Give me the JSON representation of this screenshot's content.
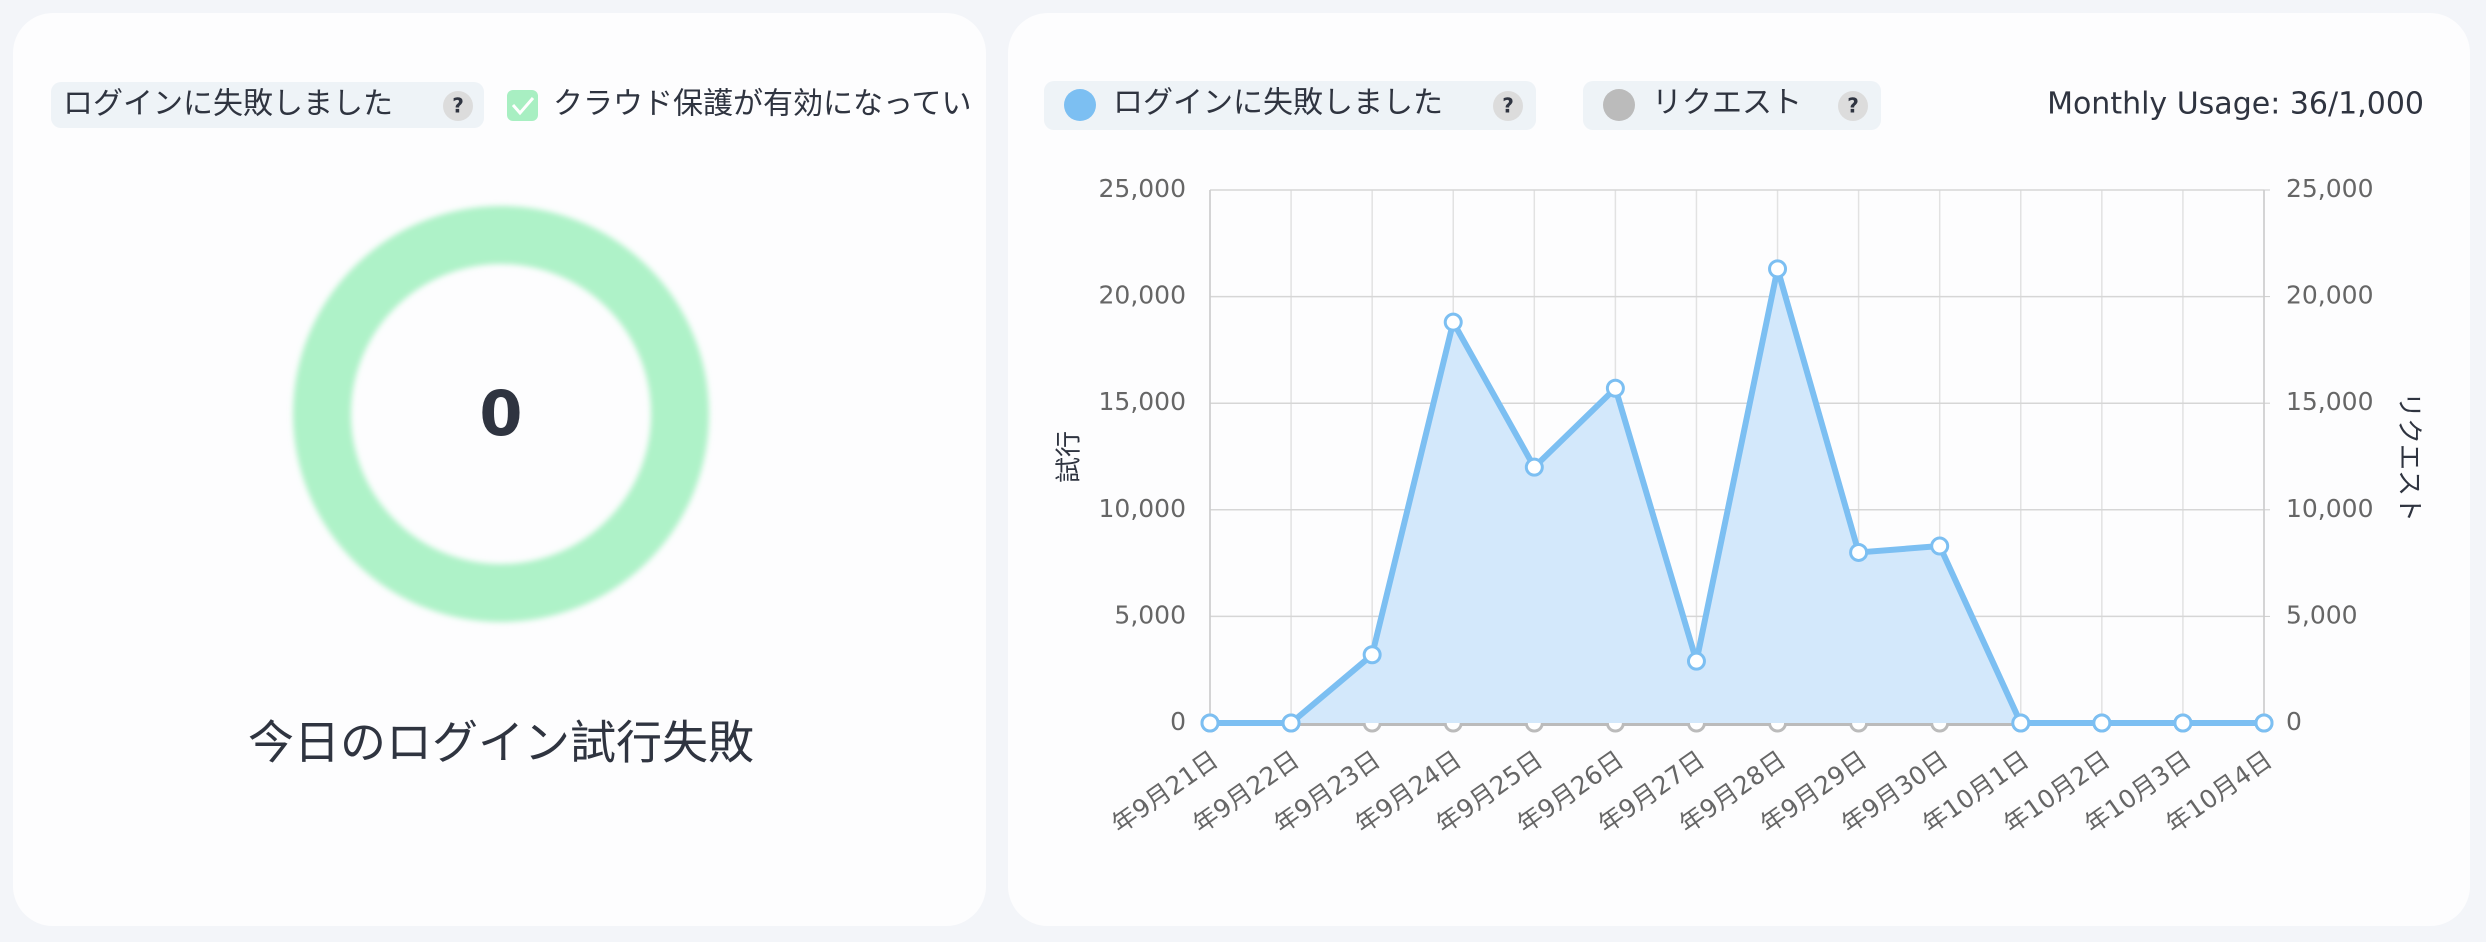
{
  "left_card": {
    "chip_label": "ログインに失敗しました",
    "help_icon": "?",
    "checkbox_label": "クラウド保護が有効になってい",
    "count": "0",
    "caption": "今日のログイン試行失敗"
  },
  "right_card": {
    "usage": "Monthly Usage: 36/1,000"
  },
  "chart_data": {
    "type": "line",
    "categories": [
      "年9月21日",
      "年9月22日",
      "年9月23日",
      "年9月24日",
      "年9月25日",
      "年9月26日",
      "年9月27日",
      "年9月28日",
      "年9月29日",
      "年9月30日",
      "年10月1日",
      "年10月2日",
      "年10月3日",
      "年10月4日"
    ],
    "series": [
      {
        "name": "ログインに失敗しました",
        "color": "#7cbff2",
        "values": [
          0,
          0,
          3200,
          18800,
          12000,
          15700,
          2900,
          21300,
          8000,
          8300,
          0,
          0,
          0,
          0
        ]
      },
      {
        "name": "リクエスト",
        "color": "#bbbbbb",
        "axis": "y2",
        "values": [
          0,
          0,
          0,
          0,
          0,
          0,
          0,
          0,
          0,
          0,
          0,
          0,
          0,
          0
        ]
      }
    ],
    "y_label": "試行",
    "y2_label": "リクエスト",
    "ylim": [
      0,
      25000
    ],
    "yticks": [
      0,
      {
        "value": 5000,
        "label": "5,000"
      },
      {
        "value": 10000,
        "label": "10,000"
      },
      {
        "value": 15000,
        "label": "15,000"
      },
      {
        "value": 20000,
        "label": "20,000"
      },
      {
        "value": 25000,
        "label": "25,000"
      }
    ],
    "y2lim": [
      0,
      25000
    ],
    "y2ticks": [
      0,
      {
        "value": 5000,
        "label": "5,000"
      },
      {
        "value": 10000,
        "label": "10,000"
      },
      {
        "value": 15000,
        "label": "15,000"
      },
      {
        "value": 20000,
        "label": "20,000"
      },
      {
        "value": 25000,
        "label": "25,000"
      }
    ],
    "grid": true
  }
}
